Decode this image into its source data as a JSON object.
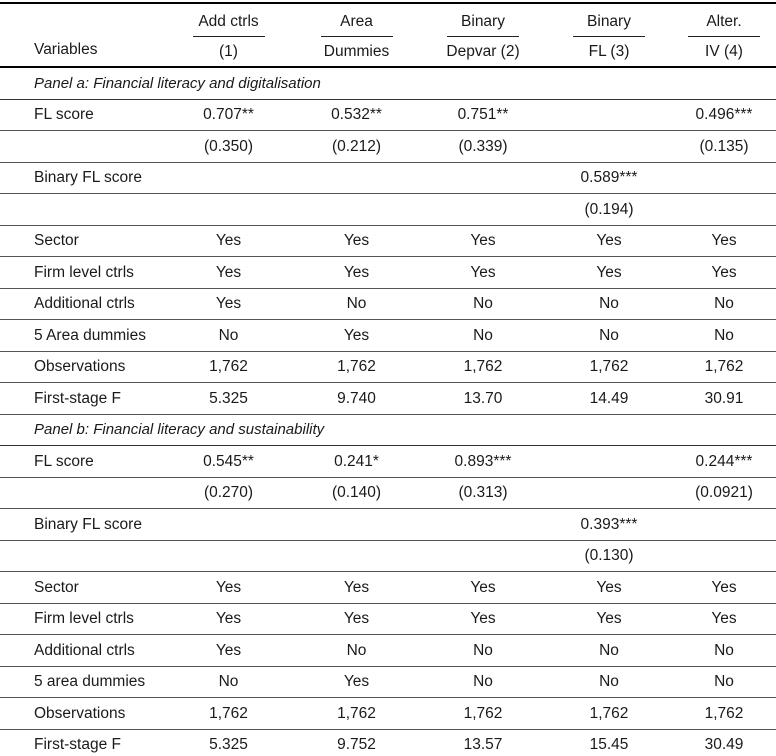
{
  "colors": {
    "background": "#ffffff",
    "text": "#1a1a1a",
    "rule_heavy": "#000000",
    "rule_light": "#555555"
  },
  "table": {
    "header": {
      "variables_label": "Variables",
      "columns": [
        {
          "line1": "Add ctrls",
          "line2": "(1)"
        },
        {
          "line1": "Area",
          "line2": "Dummies"
        },
        {
          "line1": "Binary",
          "line2": "Depvar (2)"
        },
        {
          "line1": "Binary",
          "line2": "FL (3)"
        },
        {
          "line1": "Alter.",
          "line2": "IV (4)"
        }
      ]
    },
    "panels": [
      {
        "title": "Panel a: Financial literacy and digitalisation",
        "rows": [
          {
            "label": "FL score",
            "values": [
              "0.707**",
              "0.532**",
              "0.751**",
              "",
              "0.496***"
            ]
          },
          {
            "label": "",
            "values": [
              "(0.350)",
              "(0.212)",
              "(0.339)",
              "",
              "(0.135)"
            ]
          },
          {
            "label": "Binary FL score",
            "values": [
              "",
              "",
              "",
              "0.589***",
              ""
            ]
          },
          {
            "label": "",
            "values": [
              "",
              "",
              "",
              "(0.194)",
              ""
            ]
          },
          {
            "label": "Sector",
            "values": [
              "Yes",
              "Yes",
              "Yes",
              "Yes",
              "Yes"
            ]
          },
          {
            "label": "Firm level ctrls",
            "values": [
              "Yes",
              "Yes",
              "Yes",
              "Yes",
              "Yes"
            ]
          },
          {
            "label": "Additional ctrls",
            "values": [
              "Yes",
              "No",
              "No",
              "No",
              "No"
            ]
          },
          {
            "label": "5 Area dummies",
            "values": [
              "No",
              "Yes",
              "No",
              "No",
              "No"
            ]
          },
          {
            "label": "Observations",
            "values": [
              "1,762",
              "1,762",
              "1,762",
              "1,762",
              "1,762"
            ]
          },
          {
            "label": "First-stage F",
            "values": [
              "5.325",
              "9.740",
              "13.70",
              "14.49",
              "30.91"
            ]
          }
        ]
      },
      {
        "title": "Panel b: Financial literacy and sustainability",
        "rows": [
          {
            "label": "FL score",
            "values": [
              "0.545**",
              "0.241*",
              "0.893***",
              "",
              "0.244***"
            ]
          },
          {
            "label": "",
            "values": [
              "(0.270)",
              "(0.140)",
              "(0.313)",
              "",
              "(0.0921)"
            ]
          },
          {
            "label": "Binary FL score",
            "values": [
              "",
              "",
              "",
              "0.393***",
              ""
            ]
          },
          {
            "label": "",
            "values": [
              "",
              "",
              "",
              "(0.130)",
              ""
            ]
          },
          {
            "label": "Sector",
            "values": [
              "Yes",
              "Yes",
              "Yes",
              "Yes",
              "Yes"
            ]
          },
          {
            "label": "Firm level ctrls",
            "values": [
              "Yes",
              "Yes",
              "Yes",
              "Yes",
              "Yes"
            ]
          },
          {
            "label": "Additional ctrls",
            "values": [
              "Yes",
              "No",
              "No",
              "No",
              "No"
            ]
          },
          {
            "label": "5 area dummies",
            "values": [
              "No",
              "Yes",
              "No",
              "No",
              "No"
            ]
          },
          {
            "label": "Observations",
            "values": [
              "1,762",
              "1,762",
              "1,762",
              "1,762",
              "1,762"
            ]
          },
          {
            "label": "First-stage F",
            "values": [
              "5.325",
              "9.752",
              "13.57",
              "15.45",
              "30.49"
            ]
          }
        ]
      }
    ]
  }
}
